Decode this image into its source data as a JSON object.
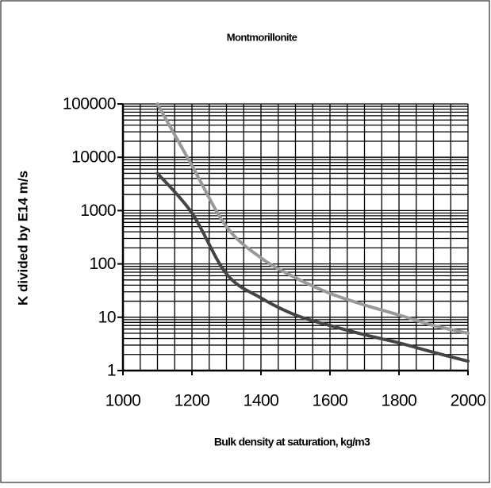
{
  "chart_data": {
    "type": "line",
    "title": "Montmorillonite",
    "xlabel": "Bulk density at saturation, kg/m3",
    "ylabel": "K divided by E14 m/s",
    "x": [
      1100,
      1200,
      1300,
      1400,
      1500,
      1600,
      1700,
      1800,
      1900,
      2000
    ],
    "series": [
      {
        "color": "#999999",
        "values": [
          100000,
          7000,
          500,
          130,
          55,
          28,
          17,
          11,
          7,
          5
        ]
      },
      {
        "color": "#444444",
        "values": [
          5000,
          900,
          65,
          23,
          11,
          7,
          4.7,
          3.3,
          2.2,
          1.5
        ]
      }
    ],
    "xlim": [
      1000,
      2000
    ],
    "xticks": [
      1000,
      1200,
      1400,
      1600,
      1800,
      2000
    ],
    "ylim": [
      1,
      100000
    ],
    "yticks": [
      1,
      10,
      100,
      1000,
      10000,
      100000
    ],
    "yscale": "log",
    "grid": true
  }
}
